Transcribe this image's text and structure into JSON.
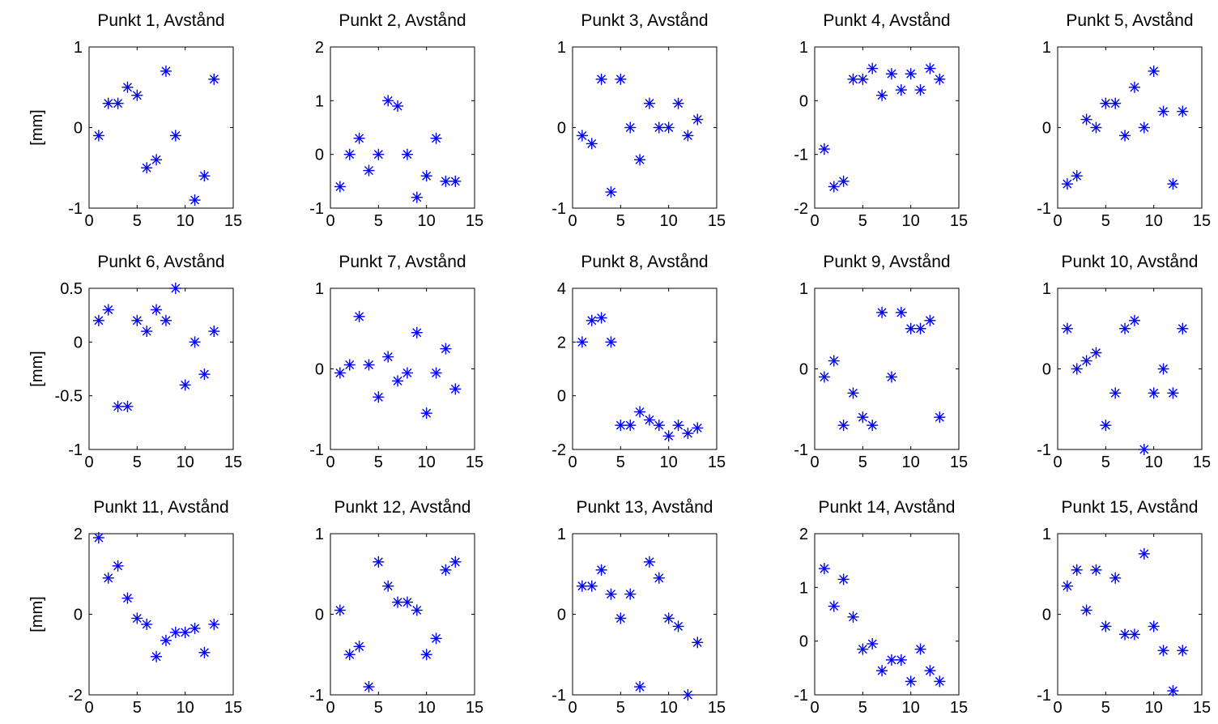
{
  "chart_data": [
    {
      "type": "scatter",
      "title": "Punkt 1, Avstånd",
      "ylabel": "[mm]",
      "xlim": [
        0,
        15
      ],
      "ylim": [
        -1,
        1
      ],
      "xticks": [
        0,
        5,
        10,
        15
      ],
      "yticks": [
        -1,
        0,
        1
      ],
      "ytick_labels": [
        "-1",
        "0",
        "1"
      ],
      "x": [
        1,
        2,
        3,
        4,
        5,
        6,
        7,
        8,
        9,
        10,
        11,
        12,
        13
      ],
      "y": [
        -0.1,
        0.3,
        0.3,
        0.5,
        0.4,
        -0.5,
        -0.4,
        0.7,
        -0.1,
        null,
        -0.9,
        -0.6,
        0.6
      ]
    },
    {
      "type": "scatter",
      "title": "Punkt 2, Avstånd",
      "ylabel": "",
      "xlim": [
        0,
        15
      ],
      "ylim": [
        -1,
        2
      ],
      "xticks": [
        0,
        5,
        10,
        15
      ],
      "yticks": [
        -1,
        0,
        1,
        2
      ],
      "ytick_labels": [
        "-1",
        "0",
        "1",
        "2"
      ],
      "x": [
        1,
        2,
        3,
        4,
        5,
        6,
        7,
        8,
        9,
        10,
        11,
        12,
        13
      ],
      "y": [
        -0.6,
        0.0,
        0.3,
        -0.3,
        0.0,
        1.0,
        0.9,
        0.0,
        -0.8,
        -0.4,
        0.3,
        -0.5,
        -0.5
      ]
    },
    {
      "type": "scatter",
      "title": "Punkt 3, Avstånd",
      "ylabel": "",
      "xlim": [
        0,
        15
      ],
      "ylim": [
        -1,
        1
      ],
      "xticks": [
        0,
        5,
        10,
        15
      ],
      "yticks": [
        -1,
        0,
        1
      ],
      "ytick_labels": [
        "-1",
        "0",
        "1"
      ],
      "x": [
        1,
        2,
        3,
        4,
        5,
        6,
        7,
        8,
        9,
        10,
        11,
        12,
        13
      ],
      "y": [
        -0.1,
        -0.2,
        0.6,
        -0.8,
        0.6,
        0.0,
        -0.4,
        0.3,
        0.0,
        0.0,
        0.3,
        -0.1,
        0.1
      ]
    },
    {
      "type": "scatter",
      "title": "Punkt 4, Avstånd",
      "ylabel": "",
      "xlim": [
        0,
        15
      ],
      "ylim": [
        -2,
        1
      ],
      "xticks": [
        0,
        5,
        10,
        15
      ],
      "yticks": [
        -2,
        -1,
        0,
        1
      ],
      "ytick_labels": [
        "-2",
        "-1",
        "0",
        "1"
      ],
      "x": [
        1,
        2,
        3,
        4,
        5,
        6,
        7,
        8,
        9,
        10,
        11,
        12,
        13
      ],
      "y": [
        -0.9,
        -1.6,
        -1.5,
        0.4,
        0.4,
        0.6,
        0.1,
        0.5,
        0.2,
        0.5,
        0.2,
        0.6,
        0.4
      ]
    },
    {
      "type": "scatter",
      "title": "Punkt 5, Avstånd",
      "ylabel": "",
      "xlim": [
        0,
        15
      ],
      "ylim": [
        -1,
        1
      ],
      "xticks": [
        0,
        5,
        10,
        15
      ],
      "yticks": [
        -1,
        0,
        1
      ],
      "ytick_labels": [
        "-1",
        "0",
        "1"
      ],
      "x": [
        1,
        2,
        3,
        4,
        5,
        6,
        7,
        8,
        9,
        10,
        11,
        12,
        13
      ],
      "y": [
        -0.7,
        -0.6,
        0.1,
        0.0,
        0.3,
        0.3,
        -0.1,
        0.5,
        0.0,
        0.7,
        0.2,
        -0.7,
        0.2
      ]
    },
    {
      "type": "scatter",
      "title": "Punkt 6, Avstånd",
      "ylabel": "[mm]",
      "xlim": [
        0,
        15
      ],
      "ylim": [
        -1,
        0.5
      ],
      "xticks": [
        0,
        5,
        10,
        15
      ],
      "yticks": [
        -1,
        -0.5,
        0,
        0.5
      ],
      "ytick_labels": [
        "-1",
        "-0.5",
        "0",
        "0.5"
      ],
      "x": [
        1,
        2,
        3,
        4,
        5,
        6,
        7,
        8,
        9,
        10,
        11,
        12,
        13
      ],
      "y": [
        0.2,
        0.3,
        -0.6,
        -0.6,
        0.2,
        0.1,
        0.3,
        0.2,
        0.5,
        -0.4,
        0.0,
        -0.3,
        0.1
      ]
    },
    {
      "type": "scatter",
      "title": "Punkt 7, Avstånd",
      "ylabel": "",
      "xlim": [
        0,
        15
      ],
      "ylim": [
        -1,
        1
      ],
      "xticks": [
        0,
        5,
        10,
        15
      ],
      "yticks": [
        -1,
        0,
        1
      ],
      "ytick_labels": [
        "-1",
        "0",
        "1"
      ],
      "x": [
        1,
        2,
        3,
        4,
        5,
        6,
        7,
        8,
        9,
        10,
        11,
        12,
        13
      ],
      "y": [
        -0.05,
        0.05,
        0.65,
        0.05,
        -0.35,
        0.15,
        -0.15,
        -0.05,
        0.45,
        -0.55,
        -0.05,
        0.25,
        -0.25
      ]
    },
    {
      "type": "scatter",
      "title": "Punkt 8, Avstånd",
      "ylabel": "",
      "xlim": [
        0,
        15
      ],
      "ylim": [
        -2,
        4
      ],
      "xticks": [
        0,
        5,
        10,
        15
      ],
      "yticks": [
        -2,
        0,
        2,
        4
      ],
      "ytick_labels": [
        "-2",
        "0",
        "2",
        "4"
      ],
      "x": [
        1,
        2,
        3,
        4,
        5,
        6,
        7,
        8,
        9,
        10,
        11,
        12,
        13
      ],
      "y": [
        2.0,
        2.8,
        2.9,
        2.0,
        -1.1,
        -1.1,
        -0.6,
        -0.9,
        -1.1,
        -1.5,
        -1.1,
        -1.4,
        -1.2
      ]
    },
    {
      "type": "scatter",
      "title": "Punkt 9, Avstånd",
      "ylabel": "",
      "xlim": [
        0,
        15
      ],
      "ylim": [
        -1,
        1
      ],
      "xticks": [
        0,
        5,
        10,
        15
      ],
      "yticks": [
        -1,
        0,
        1
      ],
      "ytick_labels": [
        "-1",
        "0",
        "1"
      ],
      "x": [
        1,
        2,
        3,
        4,
        5,
        6,
        7,
        8,
        9,
        10,
        11,
        12,
        13
      ],
      "y": [
        -0.1,
        0.1,
        -0.7,
        -0.3,
        -0.6,
        -0.7,
        0.7,
        -0.1,
        0.7,
        0.5,
        0.5,
        0.6,
        -0.6
      ]
    },
    {
      "type": "scatter",
      "title": "Punkt 10, Avstånd",
      "ylabel": "",
      "xlim": [
        0,
        15
      ],
      "ylim": [
        -1,
        1
      ],
      "xticks": [
        0,
        5,
        10,
        15
      ],
      "yticks": [
        -1,
        0,
        1
      ],
      "ytick_labels": [
        "-1",
        "0",
        "1"
      ],
      "x": [
        1,
        2,
        3,
        4,
        5,
        6,
        7,
        8,
        9,
        10,
        11,
        12,
        13
      ],
      "y": [
        0.5,
        0.0,
        0.1,
        0.2,
        -0.7,
        -0.3,
        0.5,
        0.6,
        -1.0,
        -0.3,
        0.0,
        -0.3,
        0.5
      ]
    },
    {
      "type": "scatter",
      "title": "Punkt 11, Avstånd",
      "ylabel": "[mm]",
      "xlim": [
        0,
        15
      ],
      "ylim": [
        -2,
        2
      ],
      "xticks": [
        0,
        5,
        10,
        15
      ],
      "yticks": [
        -2,
        0,
        2
      ],
      "ytick_labels": [
        "-2",
        "0",
        "2"
      ],
      "x": [
        1,
        2,
        3,
        4,
        5,
        6,
        7,
        8,
        9,
        10,
        11,
        12,
        13
      ],
      "y": [
        1.9,
        0.9,
        1.2,
        0.4,
        -0.1,
        -0.25,
        -1.05,
        -0.65,
        -0.45,
        -0.45,
        -0.35,
        -0.95,
        -0.25
      ]
    },
    {
      "type": "scatter",
      "title": "Punkt 12, Avstånd",
      "ylabel": "",
      "xlim": [
        0,
        15
      ],
      "ylim": [
        -1,
        1
      ],
      "xticks": [
        0,
        5,
        10,
        15
      ],
      "yticks": [
        -1,
        0,
        1
      ],
      "ytick_labels": [
        "-1",
        "0",
        "1"
      ],
      "x": [
        1,
        2,
        3,
        4,
        5,
        6,
        7,
        8,
        9,
        10,
        11,
        12,
        13
      ],
      "y": [
        0.05,
        -0.5,
        -0.4,
        -0.9,
        0.65,
        0.35,
        0.15,
        0.15,
        0.05,
        -0.5,
        -0.3,
        0.55,
        0.65
      ]
    },
    {
      "type": "scatter",
      "title": "Punkt 13, Avstånd",
      "ylabel": "",
      "xlim": [
        0,
        15
      ],
      "ylim": [
        -1,
        1
      ],
      "xticks": [
        0,
        5,
        10,
        15
      ],
      "yticks": [
        -1,
        0,
        1
      ],
      "ytick_labels": [
        "-1",
        "0",
        "1"
      ],
      "x": [
        1,
        2,
        3,
        4,
        5,
        6,
        7,
        8,
        9,
        10,
        11,
        12,
        13
      ],
      "y": [
        0.35,
        0.35,
        0.55,
        0.25,
        -0.05,
        0.25,
        -0.9,
        0.65,
        0.45,
        -0.05,
        -0.15,
        -1.0,
        -0.35
      ]
    },
    {
      "type": "scatter",
      "title": "Punkt 14, Avstånd",
      "ylabel": "",
      "xlim": [
        0,
        15
      ],
      "ylim": [
        -1,
        2
      ],
      "xticks": [
        0,
        5,
        10,
        15
      ],
      "yticks": [
        -1,
        0,
        1,
        2
      ],
      "ytick_labels": [
        "-1",
        "0",
        "1",
        "2"
      ],
      "x": [
        1,
        2,
        3,
        4,
        5,
        6,
        7,
        8,
        9,
        10,
        11,
        12,
        13
      ],
      "y": [
        1.35,
        0.65,
        1.15,
        0.45,
        -0.15,
        -0.05,
        -0.55,
        -0.35,
        -0.35,
        -0.75,
        -0.15,
        -0.55,
        -0.75
      ]
    },
    {
      "type": "scatter",
      "title": "Punkt 15, Avstånd",
      "ylabel": "",
      "xlim": [
        0,
        15
      ],
      "ylim": [
        -1,
        1
      ],
      "xticks": [
        0,
        5,
        10,
        15
      ],
      "yticks": [
        -1,
        0,
        1
      ],
      "ytick_labels": [
        "-1",
        "0",
        "1"
      ],
      "x": [
        1,
        2,
        3,
        4,
        5,
        6,
        7,
        8,
        9,
        10,
        11,
        12,
        13
      ],
      "y": [
        0.35,
        0.55,
        0.05,
        0.55,
        -0.15,
        0.45,
        -0.25,
        -0.25,
        0.75,
        -0.15,
        -0.45,
        -0.95,
        -0.45
      ]
    }
  ],
  "colors": {
    "marker": "#0000ff",
    "axes": "#000000",
    "background": "#ffffff"
  }
}
